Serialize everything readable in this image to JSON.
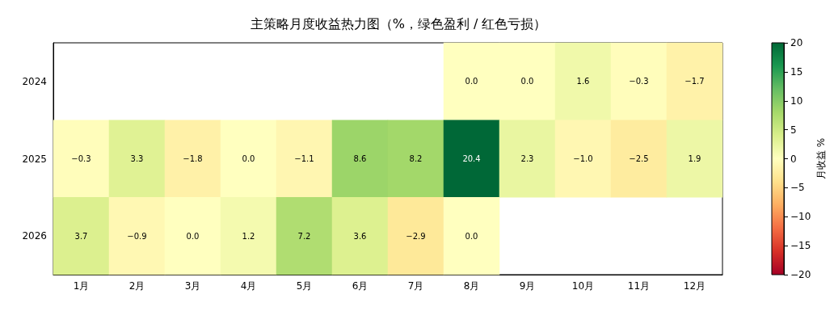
{
  "chart_data": {
    "type": "heatmap",
    "title": "主策略月度收益热力图（%，绿色盈利 / 红色亏损）",
    "clabel": "月收益 %",
    "categories": [
      "1月",
      "2月",
      "3月",
      "4月",
      "5月",
      "6月",
      "7月",
      "8月",
      "9月",
      "10月",
      "11月",
      "12月"
    ],
    "y_categories": [
      "2024",
      "2025",
      "2026"
    ],
    "cells": [
      [
        null,
        null,
        null,
        null,
        null,
        null,
        null,
        0.0,
        0.0,
        1.6,
        -0.3,
        -1.7
      ],
      [
        -0.3,
        3.3,
        -1.8,
        0.0,
        -1.1,
        8.6,
        8.2,
        20.4,
        2.3,
        -1.0,
        -2.5,
        1.9
      ],
      [
        3.7,
        -0.9,
        0.0,
        1.2,
        7.2,
        3.6,
        -2.9,
        0.0,
        null,
        null,
        null,
        null
      ]
    ],
    "cell_labels": [
      [
        null,
        null,
        null,
        null,
        null,
        null,
        null,
        "0.0",
        "0.0",
        "1.6",
        "−0.3",
        "−1.7"
      ],
      [
        "−0.3",
        "3.3",
        "−1.8",
        "0.0",
        "−1.1",
        "8.6",
        "8.2",
        "20.4",
        "2.3",
        "−1.0",
        "−2.5",
        "1.9"
      ],
      [
        "3.7",
        "−0.9",
        "0.0",
        "1.2",
        "7.2",
        "3.6",
        "−2.9",
        "0.0",
        null,
        null,
        null,
        null
      ]
    ],
    "clim": [
      -20,
      20
    ],
    "cticks": [
      {
        "value": -20,
        "label": "−20"
      },
      {
        "value": -15,
        "label": "−15"
      },
      {
        "value": -10,
        "label": "−10"
      },
      {
        "value": -5,
        "label": "−5"
      },
      0,
      5,
      10,
      15,
      20
    ],
    "grid": false
  }
}
